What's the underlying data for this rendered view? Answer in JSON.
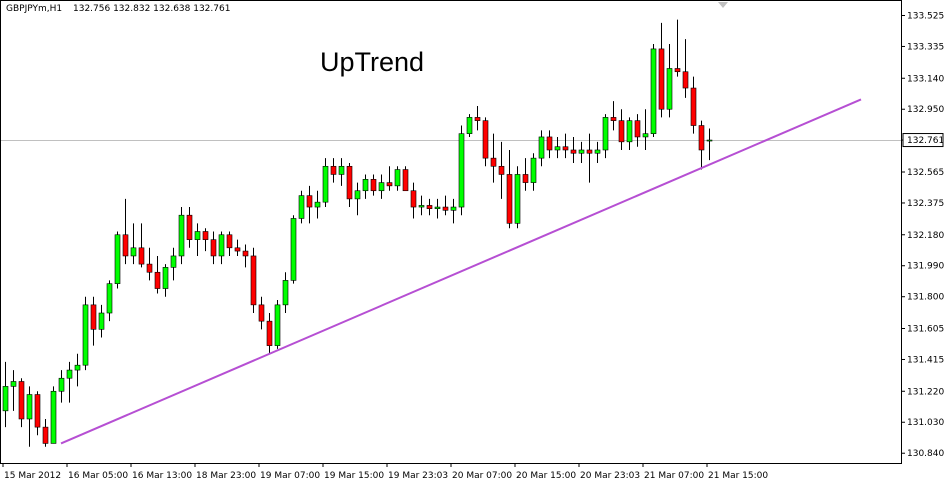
{
  "header": {
    "symbol_label": "GBPJPYm,H1",
    "ohlc_label": "132.756 132.832 132.638 132.761"
  },
  "chart_data": {
    "type": "candlestick",
    "title": "",
    "annotation": "UpTrend",
    "ylim": [
      130.78,
      133.62
    ],
    "y_ticks": [
      "133.525",
      "133.335",
      "133.140",
      "132.950",
      "132.761",
      "132.565",
      "132.375",
      "132.180",
      "131.990",
      "131.800",
      "131.605",
      "131.415",
      "131.220",
      "131.030",
      "130.840"
    ],
    "x_ticks": [
      {
        "label": "15 Mar 2012",
        "index": 0
      },
      {
        "label": "16 Mar 05:00",
        "index": 8
      },
      {
        "label": "16 Mar 13:00",
        "index": 16
      },
      {
        "label": "18 Mar 23:00",
        "index": 24
      },
      {
        "label": "19 Mar 07:00",
        "index": 32
      },
      {
        "label": "19 Mar 15:00",
        "index": 40
      },
      {
        "label": "19 Mar 23:03",
        "index": 48
      },
      {
        "label": "20 Mar 07:00",
        "index": 56
      },
      {
        "label": "20 Mar 15:00",
        "index": 64
      },
      {
        "label": "20 Mar 23:03",
        "index": 72
      },
      {
        "label": "21 Mar 07:00",
        "index": 80
      },
      {
        "label": "21 Mar 15:00",
        "index": 88
      }
    ],
    "current_price": 132.761,
    "current_price_label": "132.761",
    "grid": false,
    "colors": {
      "up": "#00ff00",
      "down": "#ff0000",
      "wick": "#000000",
      "trendline": "#b64fd3",
      "price_line": "#c0c0c0"
    },
    "trendline": {
      "start": {
        "index": 7,
        "price": 130.9
      },
      "end": {
        "index": 107,
        "price": 133.01
      }
    },
    "candles": [
      {
        "o": 131.1,
        "h": 131.4,
        "l": 131.0,
        "c": 131.25
      },
      {
        "o": 131.25,
        "h": 131.35,
        "l": 131.1,
        "c": 131.28
      },
      {
        "o": 131.28,
        "h": 131.3,
        "l": 131.0,
        "c": 131.05
      },
      {
        "o": 131.05,
        "h": 131.25,
        "l": 130.88,
        "c": 131.2
      },
      {
        "o": 131.2,
        "h": 131.22,
        "l": 130.95,
        "c": 131.0
      },
      {
        "o": 131.0,
        "h": 131.05,
        "l": 130.88,
        "c": 130.9
      },
      {
        "o": 130.9,
        "h": 131.25,
        "l": 130.9,
        "c": 131.22
      },
      {
        "o": 131.22,
        "h": 131.35,
        "l": 131.15,
        "c": 131.3
      },
      {
        "o": 131.3,
        "h": 131.4,
        "l": 131.15,
        "c": 131.35
      },
      {
        "o": 131.35,
        "h": 131.45,
        "l": 131.25,
        "c": 131.38
      },
      {
        "o": 131.38,
        "h": 131.8,
        "l": 131.35,
        "c": 131.75
      },
      {
        "o": 131.75,
        "h": 131.8,
        "l": 131.5,
        "c": 131.6
      },
      {
        "o": 131.6,
        "h": 131.75,
        "l": 131.55,
        "c": 131.7
      },
      {
        "o": 131.7,
        "h": 131.9,
        "l": 131.65,
        "c": 131.88
      },
      {
        "o": 131.88,
        "h": 132.2,
        "l": 131.85,
        "c": 132.18
      },
      {
        "o": 132.18,
        "h": 132.4,
        "l": 132.0,
        "c": 132.05
      },
      {
        "o": 132.05,
        "h": 132.25,
        "l": 132.0,
        "c": 132.1
      },
      {
        "o": 132.1,
        "h": 132.25,
        "l": 131.98,
        "c": 132.0
      },
      {
        "o": 132.0,
        "h": 132.1,
        "l": 131.9,
        "c": 131.95
      },
      {
        "o": 131.95,
        "h": 132.05,
        "l": 131.82,
        "c": 131.85
      },
      {
        "o": 131.85,
        "h": 132.0,
        "l": 131.8,
        "c": 131.98
      },
      {
        "o": 131.98,
        "h": 132.1,
        "l": 131.9,
        "c": 132.05
      },
      {
        "o": 132.05,
        "h": 132.35,
        "l": 132.0,
        "c": 132.3
      },
      {
        "o": 132.3,
        "h": 132.35,
        "l": 132.1,
        "c": 132.15
      },
      {
        "o": 132.15,
        "h": 132.25,
        "l": 132.05,
        "c": 132.2
      },
      {
        "o": 132.2,
        "h": 132.22,
        "l": 132.08,
        "c": 132.15
      },
      {
        "o": 132.15,
        "h": 132.2,
        "l": 132.0,
        "c": 132.05
      },
      {
        "o": 132.05,
        "h": 132.2,
        "l": 132.0,
        "c": 132.18
      },
      {
        "o": 132.18,
        "h": 132.2,
        "l": 132.05,
        "c": 132.1
      },
      {
        "o": 132.1,
        "h": 132.15,
        "l": 132.05,
        "c": 132.08
      },
      {
        "o": 132.08,
        "h": 132.12,
        "l": 131.98,
        "c": 132.05
      },
      {
        "o": 132.05,
        "h": 132.1,
        "l": 131.7,
        "c": 131.75
      },
      {
        "o": 131.75,
        "h": 131.8,
        "l": 131.6,
        "c": 131.65
      },
      {
        "o": 131.65,
        "h": 131.7,
        "l": 131.45,
        "c": 131.5
      },
      {
        "o": 131.5,
        "h": 131.78,
        "l": 131.48,
        "c": 131.75
      },
      {
        "o": 131.75,
        "h": 131.95,
        "l": 131.7,
        "c": 131.9
      },
      {
        "o": 131.9,
        "h": 132.3,
        "l": 131.88,
        "c": 132.28
      },
      {
        "o": 132.28,
        "h": 132.45,
        "l": 132.25,
        "c": 132.42
      },
      {
        "o": 132.42,
        "h": 132.48,
        "l": 132.25,
        "c": 132.35
      },
      {
        "o": 132.35,
        "h": 132.45,
        "l": 132.28,
        "c": 132.38
      },
      {
        "o": 132.38,
        "h": 132.65,
        "l": 132.35,
        "c": 132.6
      },
      {
        "o": 132.6,
        "h": 132.65,
        "l": 132.5,
        "c": 132.55
      },
      {
        "o": 132.55,
        "h": 132.65,
        "l": 132.48,
        "c": 132.6
      },
      {
        "o": 132.6,
        "h": 132.62,
        "l": 132.35,
        "c": 132.4
      },
      {
        "o": 132.4,
        "h": 132.5,
        "l": 132.3,
        "c": 132.45
      },
      {
        "o": 132.45,
        "h": 132.55,
        "l": 132.4,
        "c": 132.52
      },
      {
        "o": 132.52,
        "h": 132.55,
        "l": 132.42,
        "c": 132.45
      },
      {
        "o": 132.45,
        "h": 132.55,
        "l": 132.4,
        "c": 132.5
      },
      {
        "o": 132.5,
        "h": 132.6,
        "l": 132.45,
        "c": 132.48
      },
      {
        "o": 132.48,
        "h": 132.6,
        "l": 132.45,
        "c": 132.58
      },
      {
        "o": 132.58,
        "h": 132.6,
        "l": 132.45,
        "c": 132.45
      },
      {
        "o": 132.45,
        "h": 132.5,
        "l": 132.28,
        "c": 132.35
      },
      {
        "o": 132.35,
        "h": 132.42,
        "l": 132.3,
        "c": 132.36
      },
      {
        "o": 132.36,
        "h": 132.4,
        "l": 132.3,
        "c": 132.34
      },
      {
        "o": 132.34,
        "h": 132.4,
        "l": 132.28,
        "c": 132.35
      },
      {
        "o": 132.35,
        "h": 132.42,
        "l": 132.3,
        "c": 132.33
      },
      {
        "o": 132.33,
        "h": 132.4,
        "l": 132.25,
        "c": 132.35
      },
      {
        "o": 132.35,
        "h": 132.85,
        "l": 132.3,
        "c": 132.8
      },
      {
        "o": 132.8,
        "h": 132.92,
        "l": 132.78,
        "c": 132.9
      },
      {
        "o": 132.9,
        "h": 132.97,
        "l": 132.82,
        "c": 132.88
      },
      {
        "o": 132.88,
        "h": 132.9,
        "l": 132.6,
        "c": 132.65
      },
      {
        "o": 132.65,
        "h": 132.8,
        "l": 132.5,
        "c": 132.6
      },
      {
        "o": 132.6,
        "h": 132.75,
        "l": 132.4,
        "c": 132.55
      },
      {
        "o": 132.55,
        "h": 132.7,
        "l": 132.22,
        "c": 132.25
      },
      {
        "o": 132.25,
        "h": 132.6,
        "l": 132.22,
        "c": 132.55
      },
      {
        "o": 132.55,
        "h": 132.65,
        "l": 132.45,
        "c": 132.5
      },
      {
        "o": 132.5,
        "h": 132.68,
        "l": 132.45,
        "c": 132.65
      },
      {
        "o": 132.65,
        "h": 132.82,
        "l": 132.6,
        "c": 132.78
      },
      {
        "o": 132.78,
        "h": 132.82,
        "l": 132.65,
        "c": 132.7
      },
      {
        "o": 132.7,
        "h": 132.78,
        "l": 132.65,
        "c": 132.72
      },
      {
        "o": 132.72,
        "h": 132.8,
        "l": 132.65,
        "c": 132.7
      },
      {
        "o": 132.7,
        "h": 132.78,
        "l": 132.62,
        "c": 132.68
      },
      {
        "o": 132.68,
        "h": 132.75,
        "l": 132.62,
        "c": 132.7
      },
      {
        "o": 132.7,
        "h": 132.8,
        "l": 132.5,
        "c": 132.68
      },
      {
        "o": 132.68,
        "h": 132.75,
        "l": 132.62,
        "c": 132.7
      },
      {
        "o": 132.7,
        "h": 132.92,
        "l": 132.65,
        "c": 132.9
      },
      {
        "o": 132.9,
        "h": 133.0,
        "l": 132.82,
        "c": 132.88
      },
      {
        "o": 132.88,
        "h": 132.95,
        "l": 132.7,
        "c": 132.75
      },
      {
        "o": 132.75,
        "h": 132.9,
        "l": 132.7,
        "c": 132.88
      },
      {
        "o": 132.88,
        "h": 132.92,
        "l": 132.72,
        "c": 132.78
      },
      {
        "o": 132.78,
        "h": 132.95,
        "l": 132.7,
        "c": 132.8
      },
      {
        "o": 132.8,
        "h": 133.35,
        "l": 132.78,
        "c": 133.32
      },
      {
        "o": 133.32,
        "h": 133.48,
        "l": 132.9,
        "c": 132.95
      },
      {
        "o": 132.95,
        "h": 133.35,
        "l": 132.9,
        "c": 133.2
      },
      {
        "o": 133.2,
        "h": 133.5,
        "l": 133.15,
        "c": 133.18
      },
      {
        "o": 133.18,
        "h": 133.38,
        "l": 133.02,
        "c": 133.08
      },
      {
        "o": 133.08,
        "h": 133.15,
        "l": 132.8,
        "c": 132.85
      },
      {
        "o": 132.85,
        "h": 132.88,
        "l": 132.58,
        "c": 132.7
      },
      {
        "o": 132.756,
        "h": 132.832,
        "l": 132.638,
        "c": 132.761
      }
    ]
  }
}
